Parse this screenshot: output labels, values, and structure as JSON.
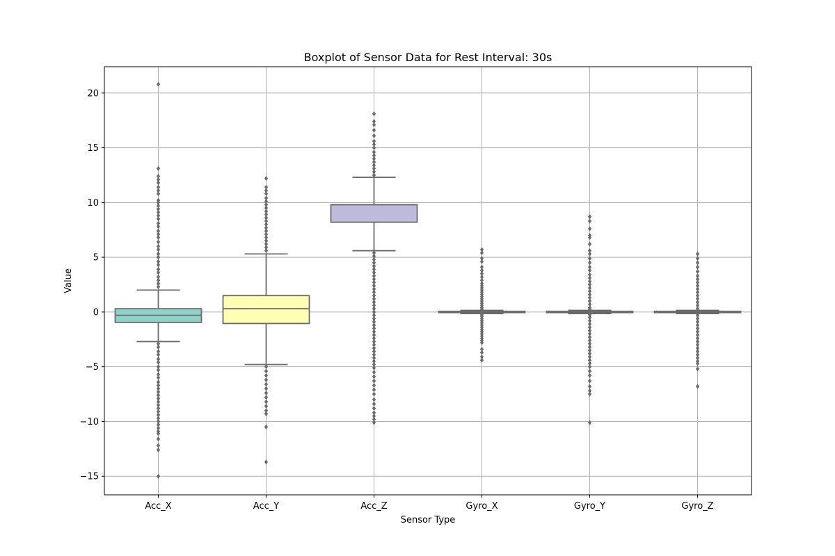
{
  "chart_data": {
    "type": "boxplot",
    "title": "Boxplot of Sensor Data for Rest Interval: 30s",
    "xlabel": "Sensor Type",
    "ylabel": "Value",
    "ylim": [
      -16.7,
      22.4
    ],
    "yticks": [
      -15,
      -10,
      -5,
      0,
      5,
      10,
      15,
      20
    ],
    "grid": true,
    "colors": {
      "box_edge": "#6b6b6b",
      "grid": "#b0b0b0",
      "outlier": "#6b6b6b"
    },
    "categories": [
      "Acc_X",
      "Acc_Y",
      "Acc_Z",
      "Gyro_X",
      "Gyro_Y",
      "Gyro_Z"
    ],
    "boxes": [
      {
        "name": "Acc_X",
        "color": "#8dd3c7",
        "whisker_low": -2.7,
        "q1": -0.95,
        "median": -0.3,
        "q3": 0.3,
        "whisker_high": 2.0,
        "outliers": [
          20.8,
          13.1,
          12.4,
          12.1,
          11.8,
          11.4,
          11.1,
          10.8,
          10.2,
          10.0,
          9.7,
          9.4,
          9.1,
          8.8,
          8.5,
          8.1,
          7.8,
          7.4,
          7.1,
          6.8,
          6.4,
          6.0,
          5.7,
          5.3,
          5.0,
          4.6,
          4.3,
          3.9,
          3.6,
          3.2,
          2.9,
          2.6,
          2.3,
          -2.9,
          -3.2,
          -3.6,
          -3.9,
          -4.3,
          -4.6,
          -5.0,
          -5.3,
          -5.7,
          -6.0,
          -6.4,
          -6.7,
          -7.0,
          -7.3,
          -7.6,
          -7.9,
          -8.2,
          -8.5,
          -8.8,
          -9.1,
          -9.4,
          -9.7,
          -10.0,
          -10.3,
          -10.6,
          -10.9,
          -11.1,
          -11.6,
          -12.2,
          -12.6,
          -15.0
        ]
      },
      {
        "name": "Acc_Y",
        "color": "#ffffb3",
        "whisker_low": -4.8,
        "q1": -1.05,
        "median": 0.3,
        "q3": 1.5,
        "whisker_high": 5.3,
        "outliers": [
          12.2,
          11.4,
          11.1,
          10.8,
          10.4,
          10.1,
          9.8,
          9.5,
          9.2,
          8.9,
          8.6,
          8.3,
          8.0,
          7.7,
          7.4,
          7.1,
          6.8,
          6.5,
          6.2,
          5.9,
          5.6,
          -5.0,
          -5.4,
          -5.8,
          -6.2,
          -6.6,
          -7.0,
          -7.4,
          -7.8,
          -8.2,
          -8.6,
          -9.0,
          -9.3,
          -10.5,
          -13.7
        ]
      },
      {
        "name": "Acc_Z",
        "color": "#bebada",
        "whisker_low": 5.6,
        "q1": 8.2,
        "median": 9.8,
        "q3": 9.8,
        "whisker_high": 12.3,
        "outliers": [
          18.1,
          17.4,
          17.1,
          16.6,
          16.1,
          15.6,
          15.3,
          15.0,
          14.6,
          14.3,
          14.0,
          13.7,
          13.4,
          13.1,
          12.8,
          12.5,
          5.4,
          5.1,
          4.8,
          4.5,
          4.2,
          3.9,
          3.6,
          3.3,
          3.0,
          2.7,
          2.4,
          2.1,
          1.8,
          1.5,
          1.2,
          0.9,
          0.6,
          0.3,
          0.0,
          -0.3,
          -0.6,
          -0.9,
          -1.2,
          -1.5,
          -1.8,
          -2.1,
          -2.4,
          -2.7,
          -3.0,
          -3.3,
          -3.6,
          -3.9,
          -4.2,
          -4.5,
          -4.8,
          -5.1,
          -5.5,
          -5.9,
          -6.3,
          -6.7,
          -7.1,
          -7.5,
          -8.0,
          -8.4,
          -8.8,
          -9.2,
          -9.5,
          -9.8,
          -10.1
        ]
      },
      {
        "name": "Gyro_X",
        "color": "#fb8072",
        "whisker_low": -0.15,
        "q1": -0.06,
        "median": 0.0,
        "q3": 0.06,
        "whisker_high": 0.15,
        "outliers": [
          5.7,
          5.4,
          4.9,
          4.6,
          4.1,
          3.8,
          3.5,
          3.2,
          2.9,
          2.6,
          2.4,
          2.2,
          2.0,
          1.8,
          1.6,
          1.4,
          1.2,
          1.0,
          0.8,
          0.6,
          0.4,
          0.25,
          -0.25,
          -0.4,
          -0.6,
          -0.8,
          -1.0,
          -1.2,
          -1.4,
          -1.6,
          -1.8,
          -2.0,
          -2.2,
          -2.4,
          -2.6,
          -2.8,
          -3.4,
          -3.7,
          -4.1,
          -4.4
        ]
      },
      {
        "name": "Gyro_Y",
        "color": "#80b1d3",
        "whisker_low": -0.15,
        "q1": -0.06,
        "median": 0.0,
        "q3": 0.06,
        "whisker_high": 0.15,
        "outliers": [
          8.7,
          8.3,
          7.6,
          7.0,
          6.8,
          6.2,
          5.6,
          5.3,
          4.9,
          4.5,
          4.1,
          3.8,
          3.4,
          3.1,
          2.8,
          2.5,
          2.2,
          1.9,
          1.6,
          1.3,
          1.0,
          0.7,
          0.4,
          0.25,
          -0.25,
          -0.5,
          -0.8,
          -1.1,
          -1.4,
          -1.7,
          -2.0,
          -2.3,
          -2.6,
          -2.9,
          -3.2,
          -3.5,
          -3.8,
          -4.1,
          -4.4,
          -4.7,
          -5.0,
          -5.4,
          -5.8,
          -6.3,
          -6.8,
          -7.2,
          -7.5,
          -10.1
        ]
      },
      {
        "name": "Gyro_Z",
        "color": "#fdb462",
        "whisker_low": -0.15,
        "q1": -0.06,
        "median": 0.0,
        "q3": 0.06,
        "whisker_high": 0.15,
        "outliers": [
          5.3,
          4.9,
          4.5,
          4.1,
          3.7,
          3.3,
          3.0,
          2.7,
          2.4,
          2.1,
          1.8,
          1.5,
          1.2,
          0.9,
          0.6,
          0.3,
          -0.3,
          -0.6,
          -0.9,
          -1.2,
          -1.5,
          -1.8,
          -2.1,
          -2.4,
          -2.7,
          -3.0,
          -3.3,
          -3.6,
          -3.9,
          -4.2,
          -4.5,
          -4.7,
          -5.2,
          -6.8
        ]
      }
    ]
  }
}
